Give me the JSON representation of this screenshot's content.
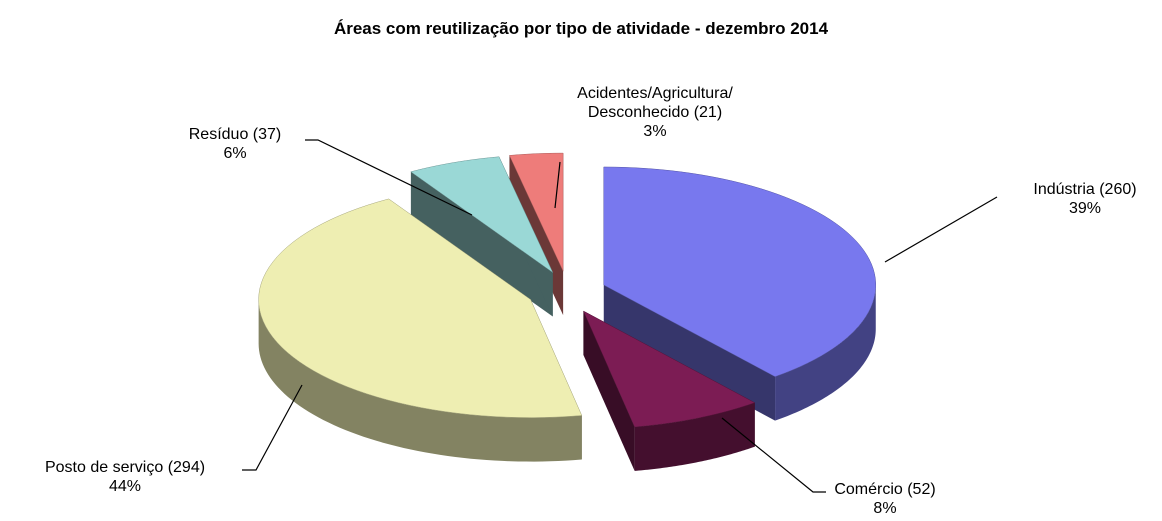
{
  "chart_data": {
    "type": "pie3d",
    "title": "Áreas com reutilização por tipo de atividade - dezembro 2014",
    "values": [
      260,
      52,
      294,
      37,
      21
    ],
    "value_labels": [
      "Indústria (260)",
      "Comércio (52)",
      "Posto de serviço (294)",
      "Resíduo (37)",
      "Acidentes/Agricultura/\nDesconhecido (21)"
    ],
    "percents": [
      39,
      8,
      44,
      6,
      3
    ],
    "percent_labels": [
      "39%",
      "8%",
      "44%",
      "6%",
      "3%"
    ],
    "colors": [
      "#7878ee",
      "#7c1c54",
      "#eeeeb2",
      "#9ad8d6",
      "#ee7c7a"
    ]
  }
}
